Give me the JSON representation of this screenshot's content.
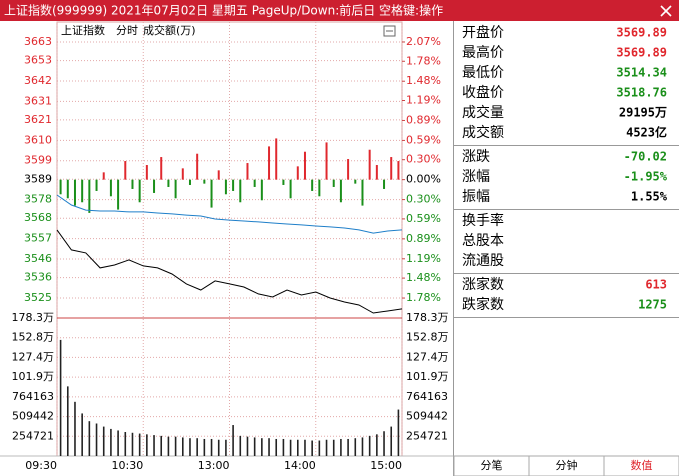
{
  "title_bar": "上证指数(999999) 2021年07月02日 星期五 PageUp/Down:前后日 空格键:操作",
  "chart_data": [
    {
      "type": "line",
      "title": "上证指数",
      "subtitle": "分时",
      "x": [
        0,
        10,
        20,
        30,
        40,
        50,
        60,
        70,
        80,
        90,
        100,
        110,
        120,
        130,
        140,
        150,
        160,
        170,
        180,
        190,
        200,
        210,
        220,
        230,
        240
      ],
      "xlim": [
        0,
        240
      ],
      "xticks": [
        {
          "value": 0,
          "label": "09:30"
        },
        {
          "value": 60,
          "label": "10:30"
        },
        {
          "value": 120,
          "label": "13:00"
        },
        {
          "value": 180,
          "label": "14:00"
        },
        {
          "value": 240,
          "label": "15:00"
        }
      ],
      "ylim": [
        3514.2,
        3668.4
      ],
      "yticks": [
        3663,
        3653,
        3642,
        3631,
        3621,
        3610,
        3599,
        3589,
        3578,
        3568,
        3557,
        3546,
        3536,
        3525
      ],
      "y2lim": [
        -2.08,
        2.22
      ],
      "y2ticks": [
        {
          "value": 2.07,
          "label": "2.07%"
        },
        {
          "value": 1.78,
          "label": "1.78%"
        },
        {
          "value": 1.48,
          "label": "1.48%"
        },
        {
          "value": 1.19,
          "label": "1.19%"
        },
        {
          "value": 0.89,
          "label": "0.89%"
        },
        {
          "value": 0.59,
          "label": "0.59%"
        },
        {
          "value": 0.3,
          "label": "0.30%"
        },
        {
          "value": 0,
          "label": "0.00%"
        },
        {
          "value": -0.3,
          "label": "0.30%"
        },
        {
          "value": -0.59,
          "label": "0.59%"
        },
        {
          "value": -0.89,
          "label": "0.89%"
        },
        {
          "value": -1.19,
          "label": "1.19%"
        },
        {
          "value": -1.48,
          "label": "1.48%"
        },
        {
          "value": -1.78,
          "label": "1.78%"
        }
      ],
      "up_color": "#e0282e",
      "down_color": "#1a8f1a",
      "grid": true,
      "series": [
        {
          "color": "#000000",
          "values": [
            3561.7,
            3550.9,
            3549.3,
            3541.2,
            3542.8,
            3545.5,
            3542.3,
            3541.2,
            3537.9,
            3532.6,
            3529.3,
            3534.2,
            3532.6,
            3530.9,
            3527.2,
            3525.5,
            3529.3,
            3526.6,
            3528.2,
            3525.0,
            3522.8,
            3521.2,
            3516.9,
            3518.0,
            3519.1
          ]
        },
        {
          "color": "#1f7fc9",
          "values": [
            3580.5,
            3575.1,
            3572.4,
            3571.9,
            3571.9,
            3571.4,
            3571.4,
            3570.8,
            3570.3,
            3569.7,
            3569.2,
            3567.6,
            3567.0,
            3566.5,
            3566.0,
            3565.4,
            3564.9,
            3564.4,
            3563.8,
            3563.3,
            3562.7,
            3561.7,
            3560.0,
            3561.1,
            3561.7
          ]
        }
      ],
      "breadth": {
        "axis": "y2",
        "x": [
          0,
          5,
          10,
          15,
          20,
          25,
          30,
          35,
          40,
          45,
          50,
          55,
          60,
          65,
          70,
          75,
          80,
          85,
          90,
          95,
          100,
          105,
          110,
          115,
          120,
          125,
          130,
          135,
          140,
          145,
          150,
          155,
          160,
          165,
          170,
          175,
          180,
          185,
          190,
          195,
          200,
          205,
          210,
          215,
          220,
          225,
          230,
          235
        ],
        "values": [
          -0.22,
          -0.28,
          -0.39,
          -0.34,
          -0.5,
          -0.17,
          0.11,
          -0.25,
          -0.45,
          0.28,
          -0.14,
          -0.34,
          0.22,
          -0.2,
          0.34,
          -0.11,
          -0.28,
          0.17,
          -0.08,
          0.39,
          -0.06,
          -0.42,
          0.14,
          -0.22,
          -0.17,
          -0.34,
          0.25,
          -0.11,
          -0.31,
          0.5,
          0.62,
          -0.08,
          -0.28,
          0.2,
          0.42,
          -0.17,
          -0.25,
          0.56,
          -0.11,
          -0.34,
          0.31,
          -0.06,
          -0.39,
          0.45,
          0.22,
          -0.14,
          0.34,
          0.28
        ]
      }
    },
    {
      "type": "bar",
      "title": "成交额(万)",
      "x": [
        0,
        5,
        10,
        15,
        20,
        25,
        30,
        35,
        40,
        45,
        50,
        55,
        60,
        65,
        70,
        75,
        80,
        85,
        90,
        95,
        100,
        105,
        110,
        115,
        120,
        125,
        130,
        135,
        140,
        145,
        150,
        155,
        160,
        165,
        170,
        175,
        180,
        185,
        190,
        195,
        200,
        205,
        210,
        215,
        220,
        225,
        230,
        235
      ],
      "xlim": [
        0,
        240
      ],
      "values": [
        1500000,
        900000,
        700000,
        550000,
        450000,
        420000,
        380000,
        350000,
        330000,
        310000,
        300000,
        290000,
        280000,
        270000,
        260000,
        250000,
        250000,
        240000,
        230000,
        230000,
        220000,
        220000,
        210000,
        210000,
        400000,
        260000,
        250000,
        240000,
        230000,
        230000,
        220000,
        220000,
        210000,
        210000,
        210000,
        200000,
        200000,
        210000,
        210000,
        220000,
        220000,
        230000,
        240000,
        260000,
        280000,
        320000,
        380000,
        600000
      ],
      "color": "#222222",
      "ylim": [
        0,
        1783000
      ],
      "yticks": [
        {
          "value": 1783000,
          "label": "178.3万"
        },
        {
          "value": 1528000,
          "label": "152.8万"
        },
        {
          "value": 1274000,
          "label": "127.4万"
        },
        {
          "value": 1019000,
          "label": "101.9万"
        },
        764163,
        509442,
        254721
      ]
    }
  ],
  "quote_panel": {
    "groups": [
      [
        {
          "label": "开盘价",
          "value": "3569.89",
          "color": "#e0282e"
        },
        {
          "label": "最高价",
          "value": "3569.89",
          "color": "#e0282e"
        },
        {
          "label": "最低价",
          "value": "3514.34",
          "color": "#1a8f1a"
        },
        {
          "label": "收盘价",
          "value": "3518.76",
          "color": "#1a8f1a"
        },
        {
          "label": "成交量",
          "value": "29195万",
          "color": "#000000"
        },
        {
          "label": "成交额",
          "value": "4523亿",
          "color": "#000000"
        }
      ],
      [
        {
          "label": "涨跌",
          "value": "-70.02",
          "color": "#1a8f1a"
        },
        {
          "label": "涨幅",
          "value": "-1.95%",
          "color": "#1a8f1a"
        },
        {
          "label": "振幅",
          "value": "1.55%",
          "color": "#000000"
        }
      ],
      [
        {
          "label": "换手率"
        },
        {
          "label": "总股本"
        },
        {
          "label": "流通股"
        }
      ],
      [
        {
          "label": "涨家数",
          "value": "613",
          "color": "#e0282e"
        },
        {
          "label": "跌家数",
          "value": "1275",
          "color": "#1a8f1a"
        }
      ]
    ],
    "tabs": [
      {
        "label": "分笔",
        "color": "#000000"
      },
      {
        "label": "分钟",
        "color": "#000000"
      },
      {
        "label": "数值",
        "color": "#e0282e"
      }
    ]
  }
}
